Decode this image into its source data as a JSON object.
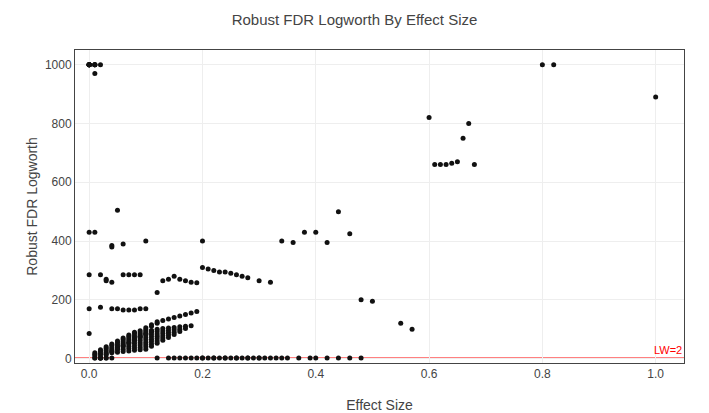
{
  "chart_data": {
    "type": "scatter",
    "title": "Robust FDR Logworth By Effect Size",
    "xlabel": "Effect Size",
    "ylabel": "Robust FDR Logworth",
    "xlim": [
      -0.025,
      1.05
    ],
    "ylim": [
      -15,
      1050
    ],
    "xticks": [
      {
        "value": 0.0,
        "label": "0.0"
      },
      0.2,
      0.4,
      0.6,
      0.8,
      {
        "value": 1.0,
        "label": "1.0"
      }
    ],
    "yticks": [
      0,
      200,
      400,
      600,
      800,
      1000
    ],
    "grid": true,
    "color": "#111111",
    "marker": "circle",
    "annotations": [
      {
        "text": "LW=2",
        "y": 2,
        "color": "#ff0000"
      }
    ],
    "x": [
      0.01,
      0.01,
      0.02,
      0.02,
      0.02,
      0.02,
      0.03,
      0.03,
      0.04,
      0.01,
      0.01,
      0.02,
      0.03,
      0.04,
      0.05,
      0.06,
      0.07,
      0.08,
      0.01,
      0.02,
      0.03,
      0.04,
      0.05,
      0.06,
      0.07,
      0.08,
      0.09,
      0.1,
      0.02,
      0.03,
      0.04,
      0.05,
      0.06,
      0.07,
      0.08,
      0.09,
      0.1,
      0.11,
      0.02,
      0.03,
      0.04,
      0.05,
      0.06,
      0.07,
      0.08,
      0.09,
      0.1,
      0.11,
      0.03,
      0.04,
      0.05,
      0.06,
      0.07,
      0.08,
      0.09,
      0.1,
      0.11,
      0.12,
      0.03,
      0.04,
      0.05,
      0.06,
      0.07,
      0.08,
      0.09,
      0.1,
      0.11,
      0.12,
      0.04,
      0.05,
      0.06,
      0.07,
      0.08,
      0.09,
      0.1,
      0.11,
      0.12,
      0.13,
      0.05,
      0.06,
      0.07,
      0.08,
      0.09,
      0.1,
      0.11,
      0.12,
      0.13,
      0.14,
      0.06,
      0.07,
      0.08,
      0.09,
      0.1,
      0.11,
      0.12,
      0.13,
      0.14,
      0.15,
      0.07,
      0.08,
      0.09,
      0.1,
      0.11,
      0.12,
      0.13,
      0.14,
      0.15,
      0.16,
      0.08,
      0.09,
      0.1,
      0.11,
      0.12,
      0.13,
      0.14,
      0.15,
      0.16,
      0.17,
      0.09,
      0.1,
      0.11,
      0.12,
      0.13,
      0.14,
      0.15,
      0.16,
      0.17,
      0.18,
      0.1,
      0.11,
      0.12,
      0.13,
      0.14,
      0.15,
      0.16,
      0.17,
      0.18,
      0.19,
      0.12,
      0.14,
      0.16,
      0.18,
      0.2,
      0.22,
      0.24,
      0.26,
      0.28,
      0.3,
      0.15,
      0.17,
      0.19,
      0.21,
      0.23,
      0.25,
      0.27,
      0.29,
      0.31,
      0.33,
      0.2,
      0.22,
      0.24,
      0.26,
      0.28,
      0.3,
      0.32,
      0.34,
      0.35,
      0.37,
      0.39,
      0.4,
      0.42,
      0.44,
      0.46,
      0.48,
      0.55,
      0.57,
      1.0,
      0.01,
      0.01,
      0.01,
      0.01,
      0.01,
      0.01,
      0.02,
      0.02,
      0.02,
      0.03,
      0.03,
      0.04,
      0.04,
      0.04,
      0.04,
      0.05,
      0.05,
      0.06,
      0.06,
      0.06,
      0.07,
      0.07,
      0.08,
      0.08,
      0.09,
      0.09,
      0.1,
      0.1,
      0.12,
      0.13,
      0.14,
      0.15,
      0.16,
      0.17,
      0.18,
      0.19,
      0.2,
      0.2,
      0.21,
      0.22,
      0.23,
      0.24,
      0.25,
      0.26,
      0.27,
      0.28,
      0.3,
      0.32,
      0.34,
      0.36,
      0.38,
      0.4,
      0.42,
      0.44,
      0.46,
      0.48,
      0.5,
      0.6,
      0.61,
      0.62,
      0.63,
      0.64,
      0.65,
      0.66,
      0.67,
      0.68,
      0.8,
      0.82,
      0.0,
      0.0,
      0.0,
      0.0,
      0.0,
      0.0,
      0.0,
      0.0,
      0.0,
      0.0,
      0.0,
      0.0
    ],
    "values": [
      2,
      2,
      2,
      2,
      2,
      2,
      2,
      2,
      2,
      10,
      20,
      30,
      40,
      50,
      60,
      70,
      80,
      90,
      15,
      25,
      35,
      45,
      55,
      65,
      75,
      85,
      95,
      105,
      12,
      22,
      32,
      42,
      52,
      62,
      72,
      82,
      92,
      110,
      18,
      28,
      38,
      48,
      58,
      68,
      78,
      88,
      98,
      115,
      14,
      24,
      34,
      44,
      54,
      64,
      74,
      84,
      94,
      120,
      16,
      26,
      36,
      46,
      56,
      66,
      76,
      86,
      96,
      125,
      20,
      30,
      40,
      50,
      60,
      70,
      80,
      90,
      100,
      130,
      22,
      32,
      42,
      52,
      62,
      72,
      82,
      92,
      102,
      135,
      24,
      34,
      44,
      54,
      64,
      74,
      84,
      94,
      104,
      140,
      26,
      36,
      46,
      56,
      66,
      76,
      86,
      96,
      106,
      145,
      28,
      38,
      48,
      58,
      68,
      78,
      88,
      98,
      108,
      150,
      30,
      40,
      50,
      60,
      70,
      80,
      90,
      100,
      110,
      155,
      32,
      42,
      52,
      62,
      72,
      82,
      92,
      102,
      112,
      160,
      2,
      2,
      2,
      2,
      2,
      2,
      2,
      2,
      2,
      2,
      2,
      2,
      2,
      2,
      2,
      2,
      2,
      2,
      2,
      2,
      2,
      2,
      2,
      2,
      2,
      2,
      2,
      2,
      2,
      2,
      2,
      2,
      2,
      2,
      2,
      2,
      120,
      100,
      890,
      1000,
      1000,
      1000,
      1000,
      970,
      430,
      1000,
      285,
      175,
      270,
      265,
      385,
      380,
      260,
      170,
      505,
      170,
      390,
      285,
      165,
      285,
      165,
      285,
      165,
      285,
      170,
      400,
      170,
      225,
      265,
      270,
      280,
      270,
      265,
      260,
      258,
      400,
      310,
      305,
      300,
      295,
      295,
      290,
      285,
      280,
      275,
      265,
      260,
      400,
      395,
      430,
      430,
      395,
      500,
      425,
      200,
      195,
      820,
      660,
      660,
      660,
      665,
      670,
      750,
      800,
      660,
      1000,
      1000,
      1000,
      1000,
      1000,
      1000,
      1000,
      1000,
      1000,
      1000,
      430,
      285,
      170,
      85
    ]
  }
}
